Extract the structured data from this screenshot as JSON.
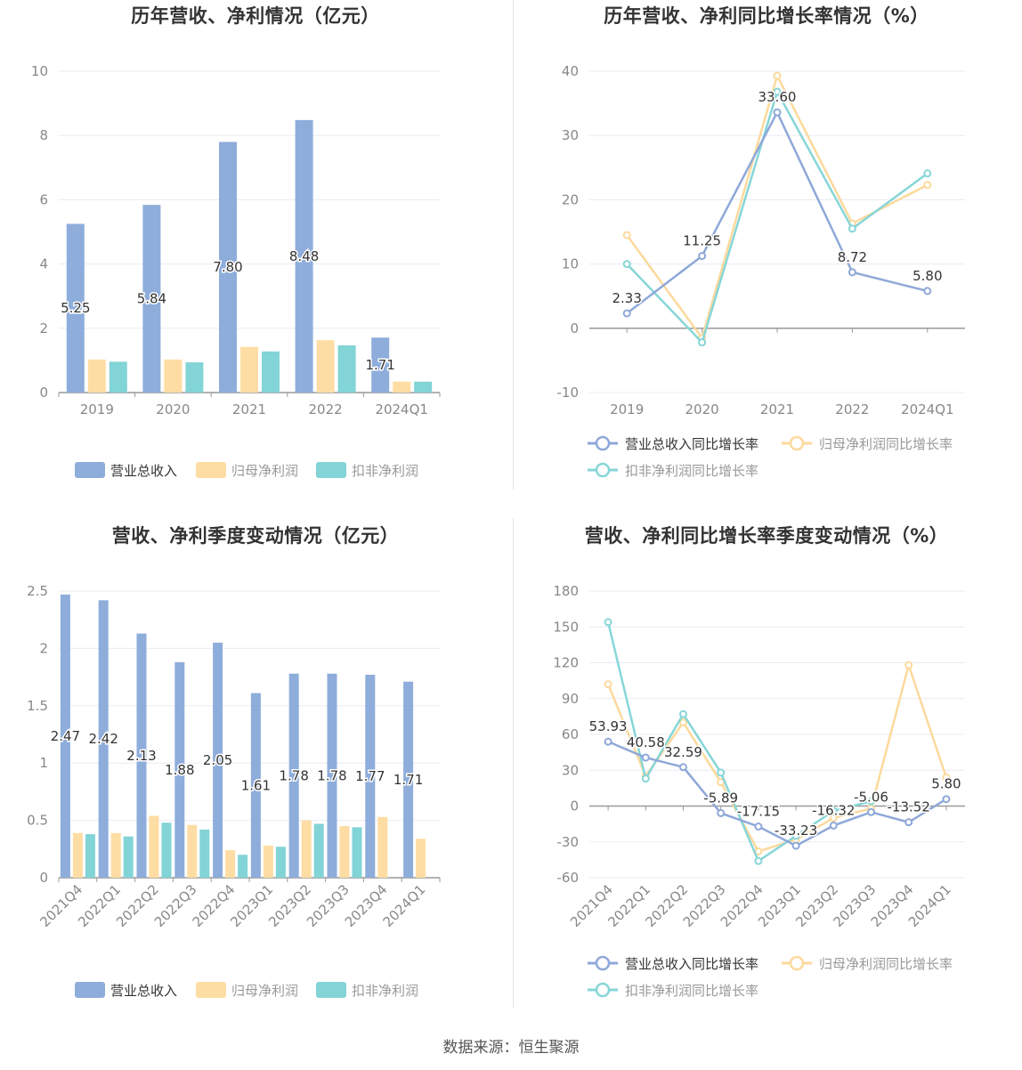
{
  "source": "数据来源：恒生聚源",
  "colors": {
    "revenue": "#8EADDB",
    "net_profit": "#FEDDA4",
    "deducted_profit": "#82D4D6",
    "revenue_line": "#8EA8D8",
    "net_profit_line": "#FCD99C",
    "deducted_line": "#87D6D8",
    "axis": "#888888",
    "grid": "#E8ECF4"
  },
  "chart_data": [
    {
      "id": "annual-amounts",
      "type": "bar",
      "title": "历年营收、净利情况（亿元）",
      "categories": [
        "2019",
        "2020",
        "2021",
        "2022",
        "2024Q1"
      ],
      "ylim": [
        0,
        10
      ],
      "yticks": [
        0,
        2,
        4,
        6,
        8,
        10
      ],
      "grid": true,
      "legend_position": "bottom",
      "series": [
        {
          "name": "营业总收入",
          "values": [
            5.25,
            5.84,
            7.8,
            8.48,
            1.71
          ],
          "labels": [
            "5.25",
            "5.84",
            "7.80",
            "8.48",
            "1.71"
          ]
        },
        {
          "name": "归母净利润",
          "values": [
            1.03,
            1.03,
            1.42,
            1.63,
            0.34
          ]
        },
        {
          "name": "扣非净利润",
          "values": [
            0.96,
            0.94,
            1.28,
            1.47,
            0.34
          ]
        }
      ]
    },
    {
      "id": "annual-growth",
      "type": "line",
      "title": "历年营收、净利同比增长率情况（%）",
      "categories": [
        "2019",
        "2020",
        "2021",
        "2022",
        "2024Q1"
      ],
      "ylim": [
        -10,
        40
      ],
      "yticks": [
        -10,
        0,
        10,
        20,
        30,
        40
      ],
      "grid": true,
      "legend_position": "bottom",
      "series": [
        {
          "name": "营业总收入同比增长率",
          "values": [
            2.33,
            11.25,
            33.6,
            8.72,
            5.8
          ],
          "labels": [
            "2.33",
            "11.25",
            "33.60",
            "8.72",
            "5.80"
          ]
        },
        {
          "name": "归母净利润同比增长率",
          "values": [
            14.5,
            -1.5,
            39.3,
            16.3,
            22.3
          ]
        },
        {
          "name": "扣非净利润同比增长率",
          "values": [
            10.0,
            -2.2,
            36.8,
            15.5,
            24.1
          ]
        }
      ]
    },
    {
      "id": "quarterly-amounts",
      "type": "bar",
      "title": "营收、净利季度变动情况（亿元）",
      "categories": [
        "2021Q4",
        "2022Q1",
        "2022Q2",
        "2022Q3",
        "2022Q4",
        "2023Q1",
        "2023Q2",
        "2023Q3",
        "2023Q4",
        "2024Q1"
      ],
      "ylim": [
        0,
        2.5
      ],
      "yticks": [
        0,
        0.5,
        1,
        1.5,
        2,
        2.5
      ],
      "grid": true,
      "legend_position": "bottom",
      "series": [
        {
          "name": "营业总收入",
          "values": [
            2.47,
            2.42,
            2.13,
            1.88,
            2.05,
            1.61,
            1.78,
            1.78,
            1.77,
            1.71
          ],
          "labels": [
            "2.47",
            "2.42",
            "2.13",
            "1.88",
            "2.05",
            "1.61",
            "1.78",
            "1.78",
            "1.77",
            "1.71"
          ]
        },
        {
          "name": "归母净利润",
          "values": [
            0.39,
            0.39,
            0.54,
            0.46,
            0.24,
            0.28,
            0.5,
            0.45,
            0.53,
            0.34
          ]
        },
        {
          "name": "扣非净利润",
          "values": [
            0.38,
            0.36,
            0.48,
            0.42,
            0.2,
            0.27,
            0.47,
            0.44,
            null,
            null
          ]
        }
      ]
    },
    {
      "id": "quarterly-growth",
      "type": "line",
      "title": "营收、净利同比增长率季度变动情况（%）",
      "categories": [
        "2021Q4",
        "2022Q1",
        "2022Q2",
        "2022Q3",
        "2022Q4",
        "2023Q1",
        "2023Q2",
        "2023Q3",
        "2023Q4",
        "2024Q1"
      ],
      "ylim": [
        -60,
        180
      ],
      "yticks": [
        -60,
        -30,
        0,
        30,
        60,
        90,
        120,
        150,
        180
      ],
      "grid": true,
      "legend_position": "bottom",
      "series": [
        {
          "name": "营业总收入同比增长率",
          "values": [
            53.93,
            40.58,
            32.59,
            -5.89,
            -17.15,
            -33.23,
            -16.32,
            -5.06,
            -13.52,
            5.8
          ],
          "labels": [
            "53.93",
            "40.58",
            "32.59",
            "-5.89",
            "-17.15",
            "-33.23",
            "-16.32",
            "-5.06",
            "-13.52",
            "5.80"
          ]
        },
        {
          "name": "归母净利润同比增长率",
          "values": [
            102,
            25,
            70,
            20,
            -38,
            -28,
            -10,
            -2,
            118,
            24
          ]
        },
        {
          "name": "扣非净利润同比增长率",
          "values": [
            154,
            23,
            77,
            28,
            -46,
            -25,
            -4,
            4,
            null,
            null
          ]
        }
      ]
    }
  ]
}
